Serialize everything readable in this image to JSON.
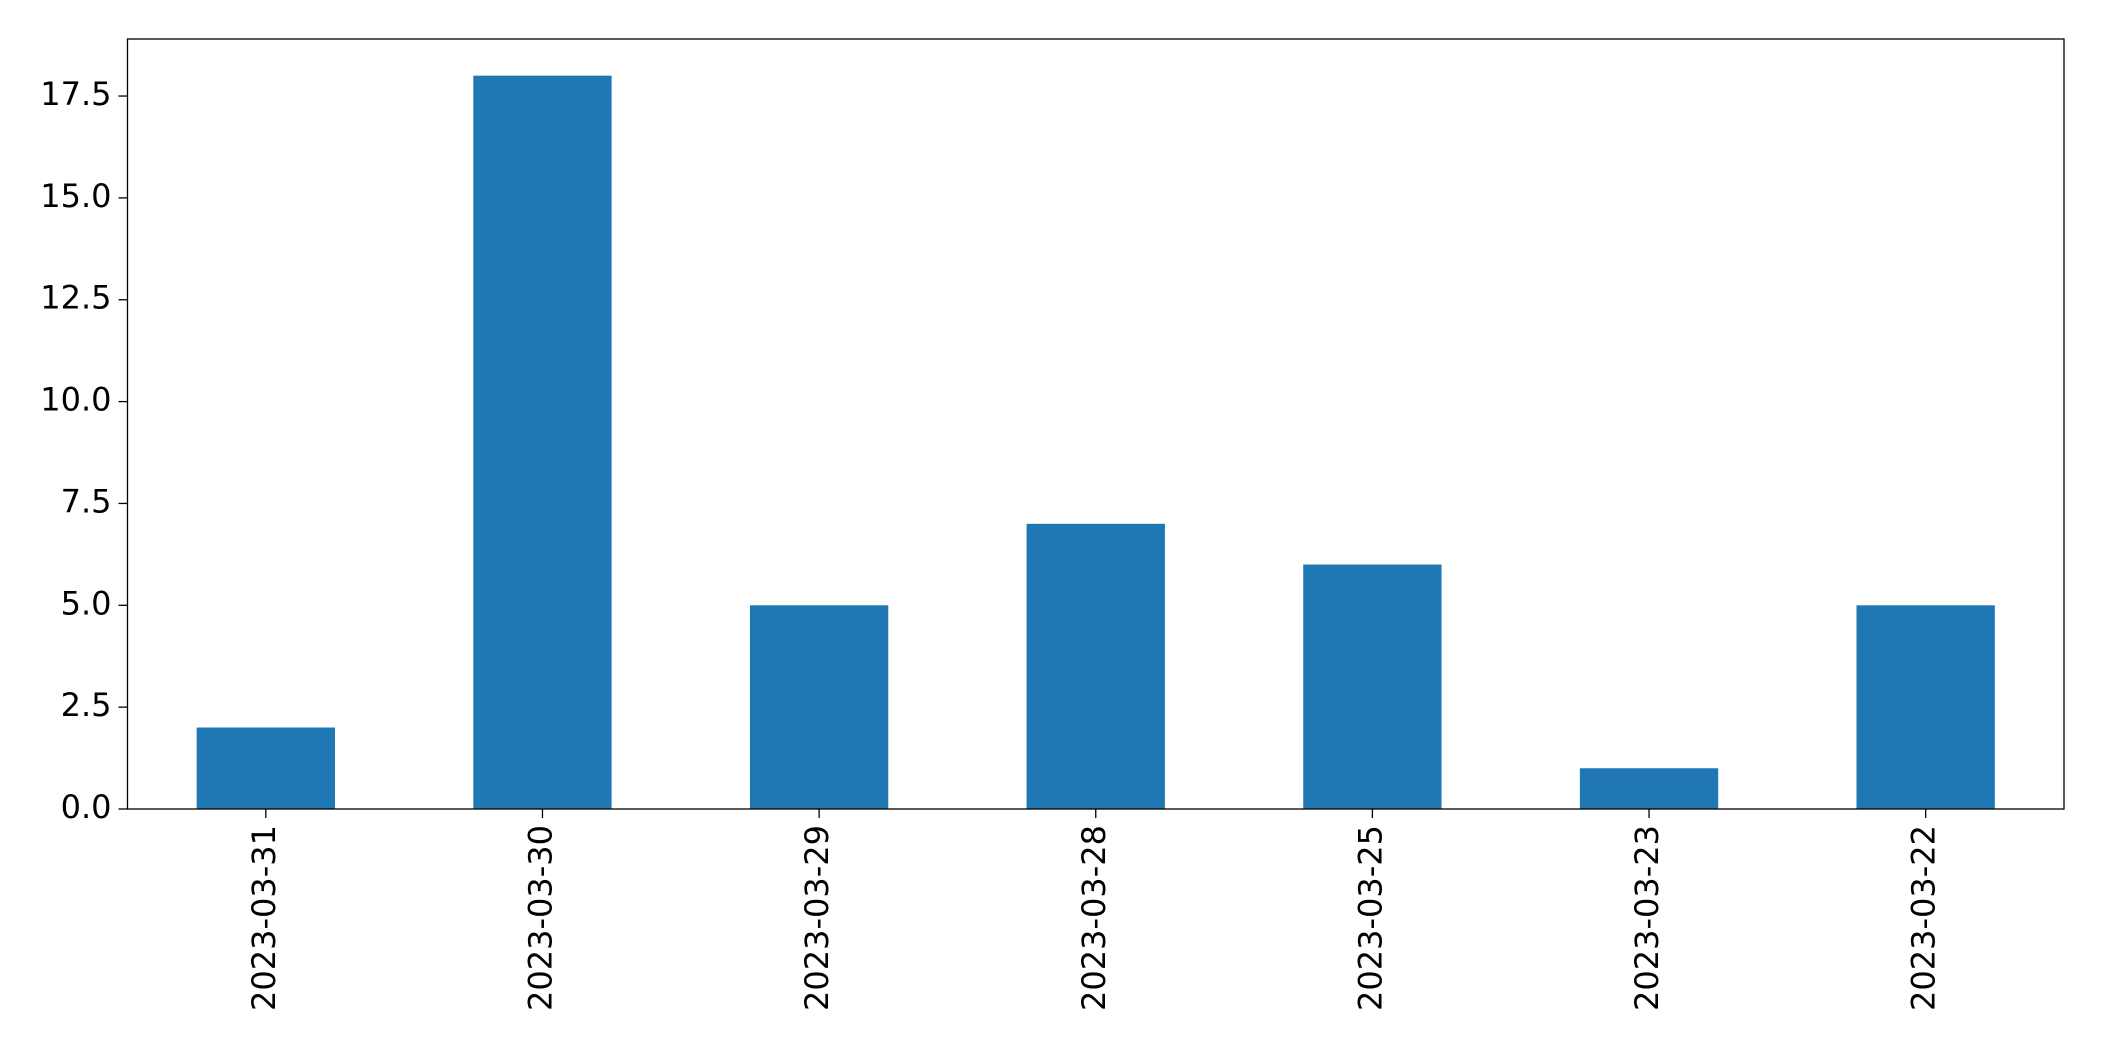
{
  "chart_data": {
    "type": "bar",
    "categories": [
      "2023-03-31",
      "2023-03-30",
      "2023-03-29",
      "2023-03-28",
      "2023-03-25",
      "2023-03-23",
      "2023-03-22"
    ],
    "values": [
      2,
      18,
      5,
      7,
      6,
      1,
      5
    ],
    "color": "#1f77b4",
    "ylim": [
      0,
      18.9
    ],
    "yticks": [
      {
        "value": 0,
        "label": "0.0"
      },
      2.5,
      {
        "value": 5,
        "label": "5.0"
      },
      7.5,
      {
        "value": 10,
        "label": "10.0"
      },
      12.5,
      {
        "value": 15,
        "label": "15.0"
      },
      17.5
    ],
    "grid": false
  }
}
